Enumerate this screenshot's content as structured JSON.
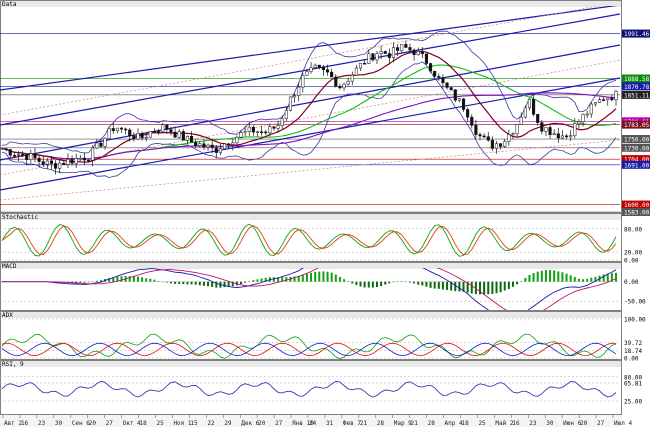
{
  "panels": {
    "data": {
      "title": "Data"
    },
    "stochastic": {
      "title": "Stochastic"
    },
    "macd": {
      "title": "MACD"
    },
    "adx": {
      "title": "ADX"
    },
    "rsi": {
      "title": "RSI, 9"
    }
  },
  "price_labels": [
    {
      "text": "1991.46",
      "color": "#10107a",
      "y": 1991.46
    },
    {
      "text": "1888.58",
      "color": "#0a8a0a",
      "y": 1888.58
    },
    {
      "text": "1870.78",
      "color": "#1a1aa8",
      "y": 1870.78
    },
    {
      "text": "1851.11",
      "color": "#222222",
      "y": 1851.11
    },
    {
      "text": "1790.61",
      "color": "#c000c0",
      "y": 1790.61
    },
    {
      "text": "1783.05",
      "color": "#7a1020",
      "y": 1783.05
    },
    {
      "text": "1750.00",
      "color": "#555555",
      "y": 1750.0
    },
    {
      "text": "1730.00",
      "color": "#555555",
      "y": 1730.0
    },
    {
      "text": "1704.00",
      "color": "#c00000",
      "y": 1704.0
    },
    {
      "text": "1691.00",
      "color": "#1a1aa8",
      "y": 1691.0
    },
    {
      "text": "1600.00",
      "color": "#c00000",
      "y": 1600.0
    },
    {
      "text": "1583.00",
      "color": "#555555",
      "y": 1583.0
    }
  ],
  "stoch_labels": [
    {
      "text": "80.00",
      "y": 80
    },
    {
      "text": "20.00",
      "y": 20
    },
    {
      "text": "0.00",
      "y": 0
    }
  ],
  "macd_labels": [
    {
      "text": "0.00",
      "y": 0
    },
    {
      "text": "-50.00",
      "y": -50
    }
  ],
  "adx_labels": [
    {
      "text": "100.00",
      "y": 100
    },
    {
      "text": "39.72",
      "y": 39.72
    },
    {
      "text": "18.74",
      "y": 18.74
    },
    {
      "text": "0.00",
      "y": 0
    }
  ],
  "rsi_labels": [
    {
      "text": "80.00",
      "y": 80
    },
    {
      "text": "65.81",
      "y": 65.81
    },
    {
      "text": "25.00",
      "y": 25
    }
  ],
  "dates": [
    "Авг 2",
    "16",
    "23",
    "30",
    "Сен 6",
    "20",
    "27",
    "Окт 4",
    "18",
    "25",
    "Ноя 1",
    "15",
    "22",
    "29",
    "Дек 6",
    "20",
    "27",
    "Янв 10",
    "24",
    "31",
    "Фев 7",
    "21",
    "28",
    "Мар 9",
    "21",
    "28",
    "Апр 4",
    "18",
    "25",
    "Май 2",
    "16",
    "23",
    "30",
    "Июн 6",
    "20",
    "27",
    "Июл 4"
  ],
  "chart_data": {
    "type": "candlestick",
    "panels": [
      "Data",
      "Stochastic",
      "MACD",
      "ADX",
      "RSI, 9"
    ],
    "close_approx": [
      1728,
      1718,
      1712,
      1700,
      1690,
      1698,
      1705,
      1712,
      1745,
      1780,
      1765,
      1750,
      1770,
      1778,
      1760,
      1745,
      1735,
      1725,
      1745,
      1760,
      1770,
      1765,
      1780,
      1840,
      1890,
      1910,
      1900,
      1870,
      1900,
      1930,
      1950,
      1945,
      1960,
      1950,
      1925,
      1880,
      1850,
      1820,
      1760,
      1735,
      1745,
      1780,
      1840,
      1780,
      1765,
      1755,
      1790,
      1820,
      1845,
      1851
    ],
    "ylim": [
      1583,
      2050
    ],
    "horizontal_levels": [
      1991.46,
      1888.58,
      1870.78,
      1851.11,
      1790.61,
      1783.05,
      1750.0,
      1730.0,
      1704.0,
      1691.0,
      1600.0,
      1583.0
    ]
  }
}
